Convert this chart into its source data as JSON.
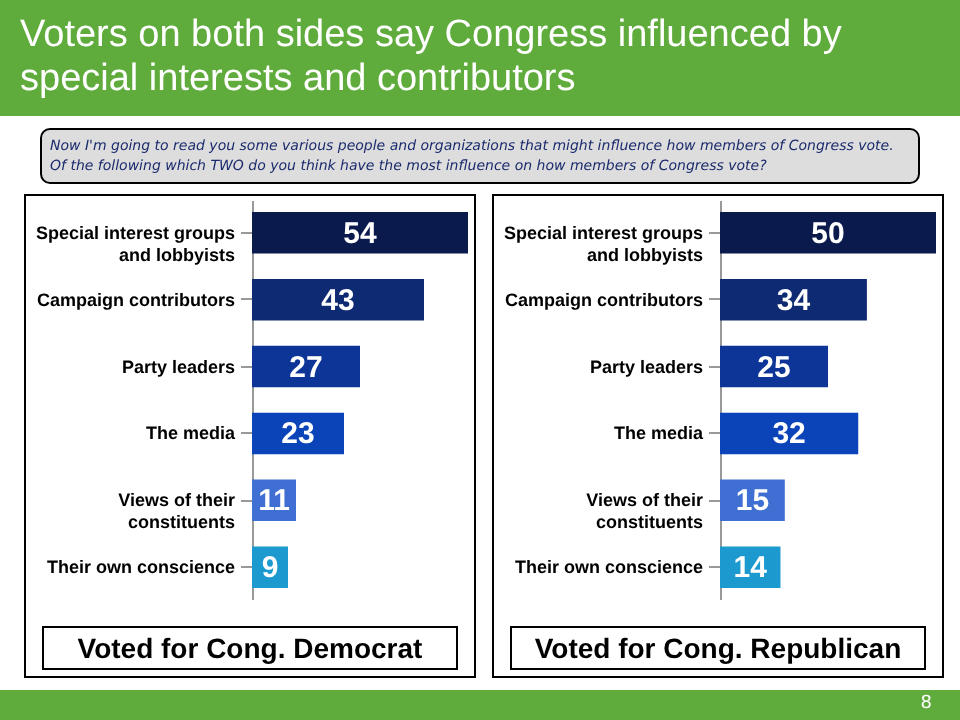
{
  "chart_data": [
    {
      "type": "bar",
      "orientation": "horizontal",
      "title": "Voters on both sides say Congress influenced by special interests and contributors",
      "annotations": [
        "Now I'm going to read you some various people and organizations that might influence how members of Congress vote. Of the following which TWO do you think have the most influence on how members of Congress vote?"
      ],
      "xlabel": "Voted for Cong. Democrat",
      "categories": [
        "Special interest groups and lobbyists",
        "Campaign contributors",
        "Party leaders",
        "The media",
        "Views of their constituents",
        "Their own conscience"
      ],
      "values": [
        54,
        43,
        27,
        23,
        11,
        9
      ],
      "colors": [
        "#0b1a4d",
        "#0e2a72",
        "#0c3597",
        "#0b44b8",
        "#3f6fd2",
        "#1c9ad0"
      ],
      "data_labels": true
    },
    {
      "type": "bar",
      "orientation": "horizontal",
      "annotations": [
        "8"
      ],
      "xlabel": "Voted for Cong. Republican",
      "categories": [
        "Special interest groups and lobbyists",
        "Campaign contributors",
        "Party leaders",
        "The media",
        "Views of their constituents",
        "Their own conscience"
      ],
      "values": [
        50,
        34,
        25,
        32,
        15,
        14
      ],
      "colors": [
        "#0b1a4d",
        "#0e2a72",
        "#0c3597",
        "#0b44b8",
        "#3f6fd2",
        "#1c9ad0"
      ],
      "data_labels": true
    }
  ]
}
